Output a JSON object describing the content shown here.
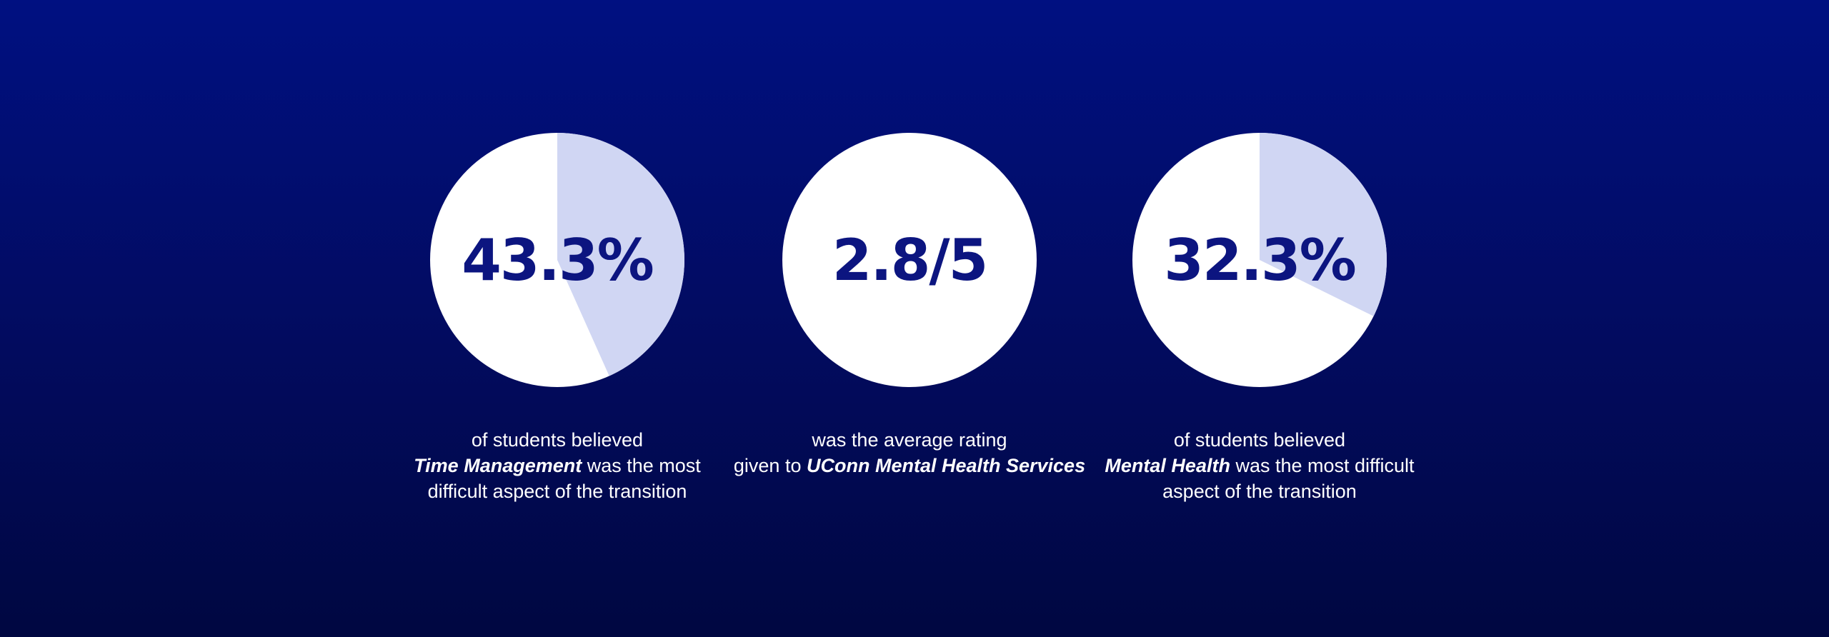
{
  "colors": {
    "background_top": "#001081",
    "background_bottom": "#000741",
    "pie_base": "#ffffff",
    "pie_highlight": "#d0d6f3",
    "value_text": "#0c1580",
    "caption_text": "#ffffff"
  },
  "chart_data": [
    {
      "type": "pie",
      "value_label": "43.3%",
      "values": [
        43.3,
        56.7
      ],
      "caption": {
        "line1": "of students believed",
        "line2_emphasis": "Time Management",
        "line2_rest": " was the most",
        "line3": "difficult aspect of the transition"
      }
    },
    {
      "type": "pie",
      "value_label": "2.8/5",
      "values": [
        0,
        100
      ],
      "caption": {
        "line1": "was the average rating",
        "line2_prefix": "given to ",
        "line2_emphasis": "UConn Mental Health Services"
      }
    },
    {
      "type": "pie",
      "value_label": "32.3%",
      "values": [
        32.3,
        67.7
      ],
      "caption": {
        "line1": "of students believed",
        "line2_emphasis": "Mental Health",
        "line2_rest": " was the most difficult",
        "line3": "aspect of the transition"
      }
    }
  ]
}
